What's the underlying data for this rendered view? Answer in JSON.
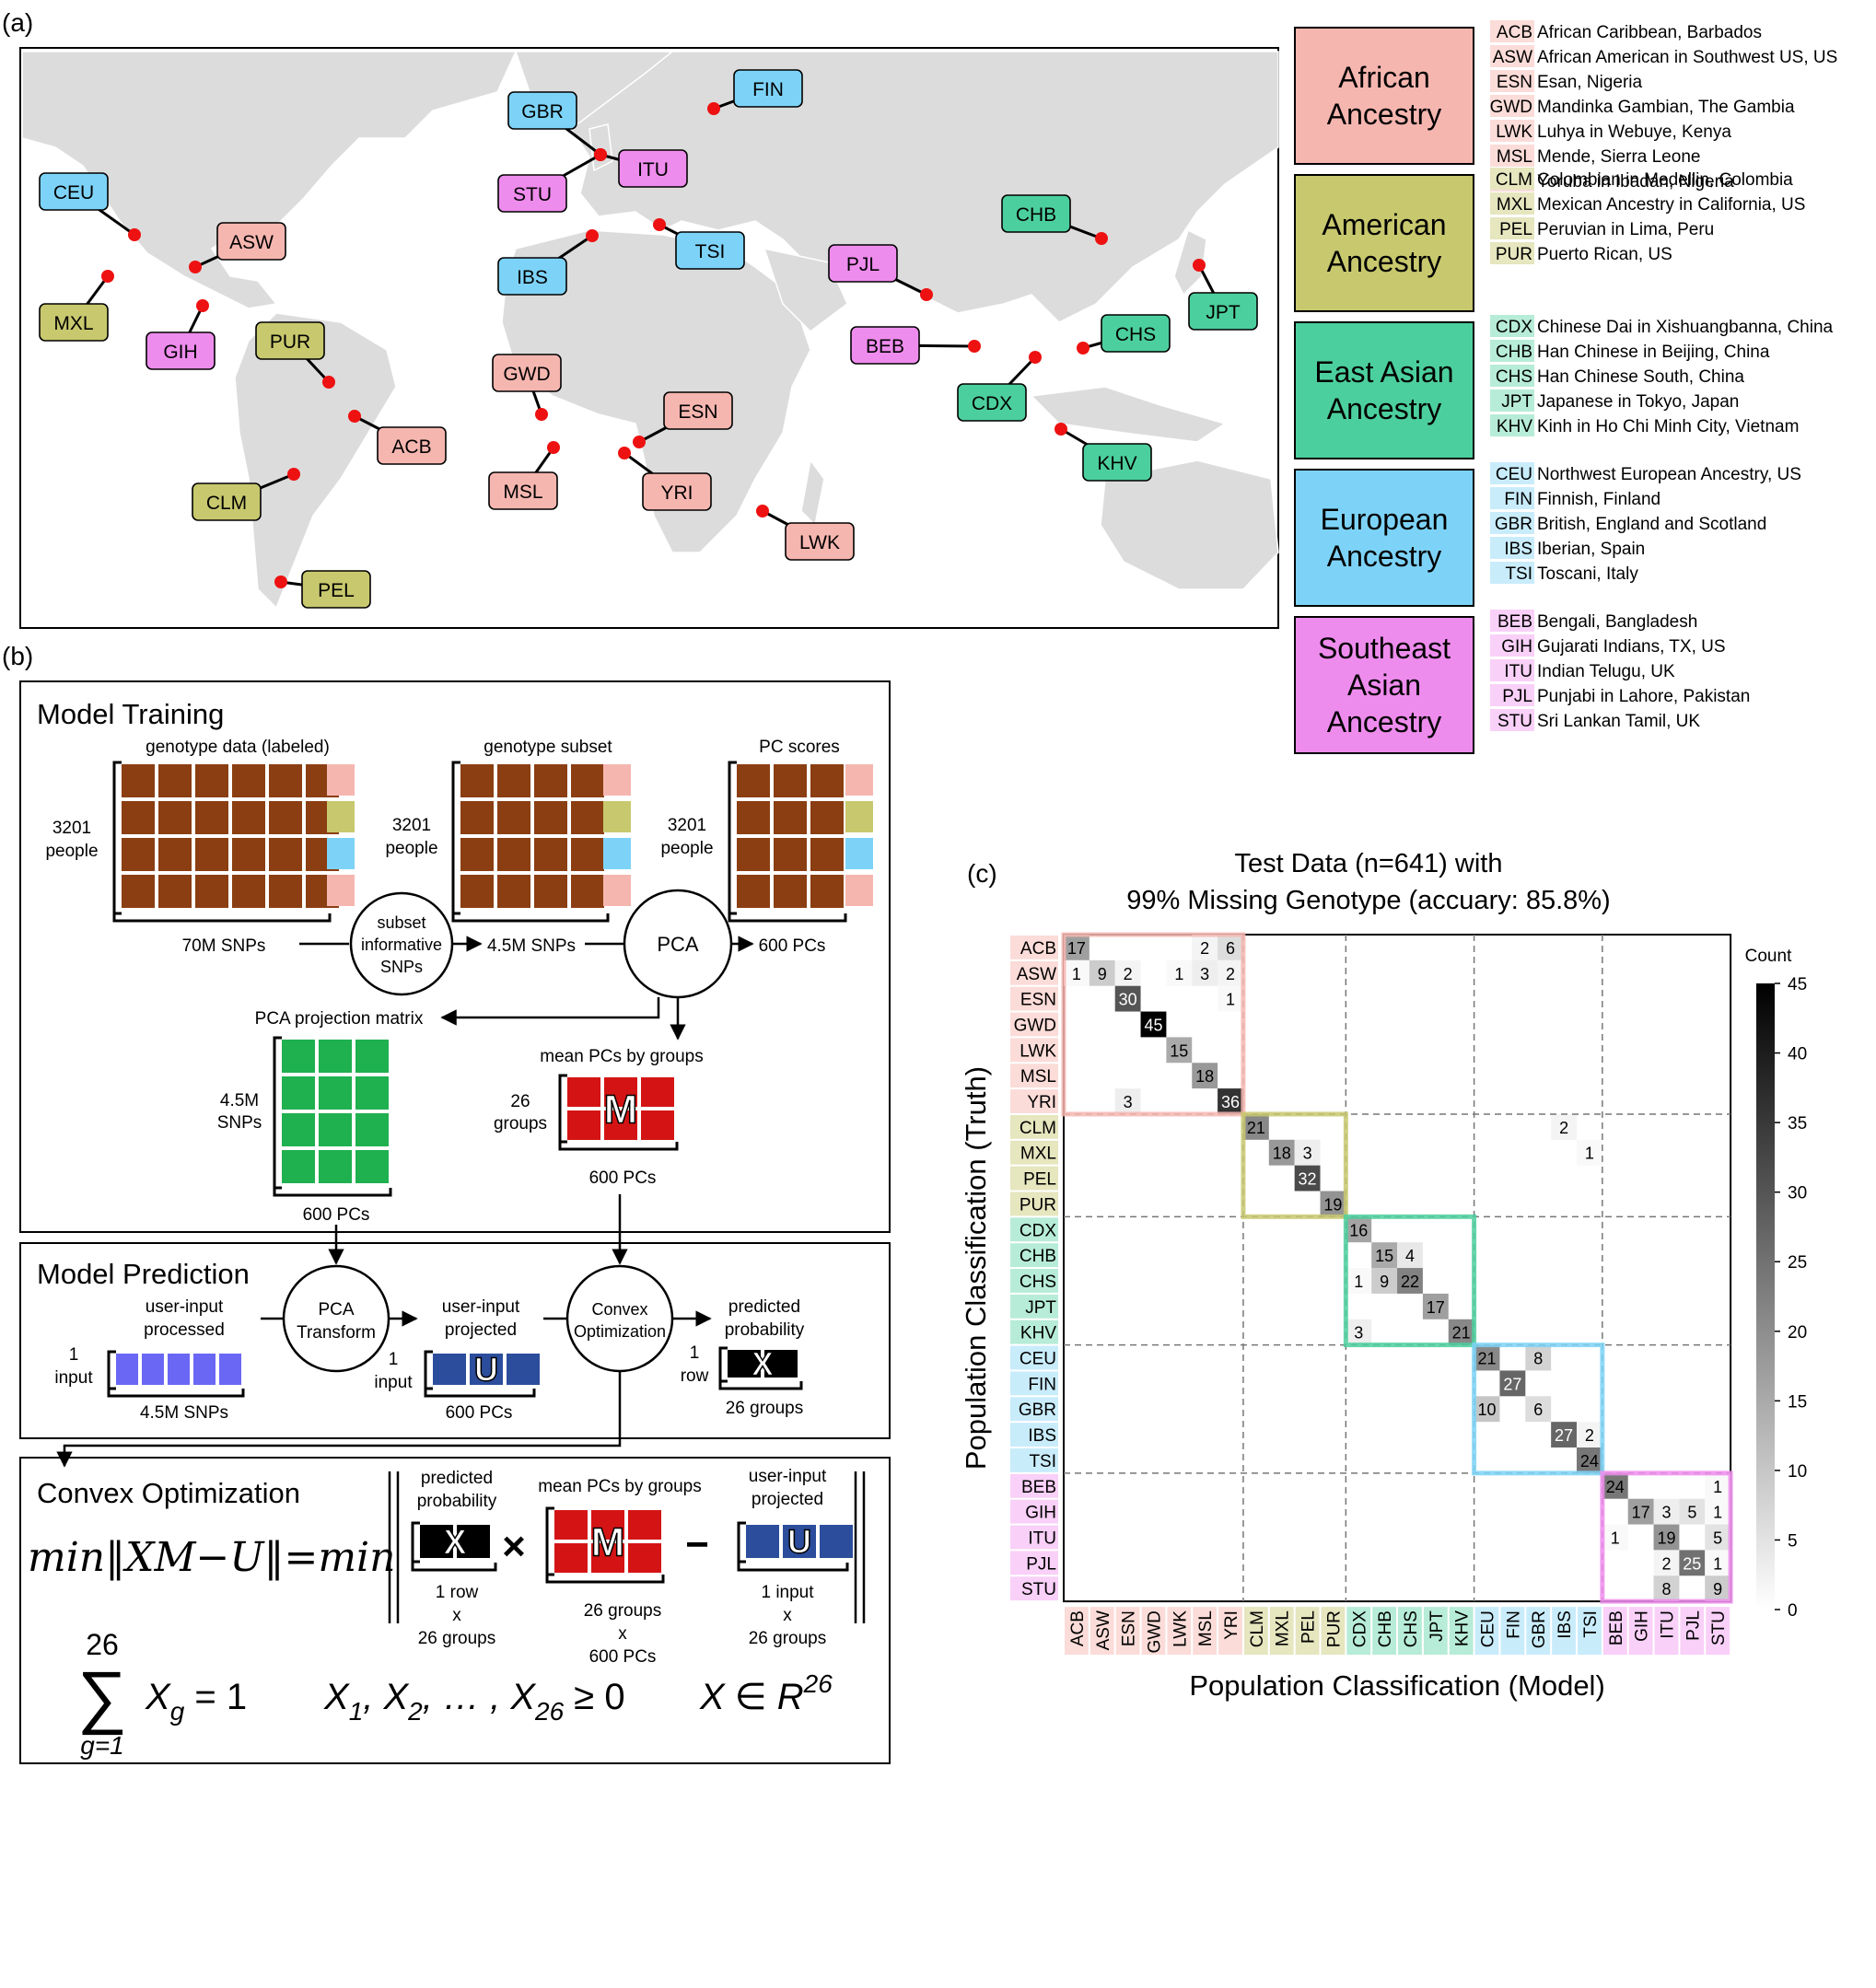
{
  "panels": {
    "a": "(a)",
    "b": "(b)",
    "c": "(c)"
  },
  "map": {
    "pins": [
      {
        "code": "CEU",
        "region": "EUR"
      },
      {
        "code": "ASW",
        "region": "AFR"
      },
      {
        "code": "MXL",
        "region": "AMR"
      },
      {
        "code": "GIH",
        "region": "SAS"
      },
      {
        "code": "PUR",
        "region": "AMR"
      },
      {
        "code": "ACB",
        "region": "AFR"
      },
      {
        "code": "CLM",
        "region": "AMR"
      },
      {
        "code": "PEL",
        "region": "AMR"
      },
      {
        "code": "GBR",
        "region": "EUR"
      },
      {
        "code": "FIN",
        "region": "EUR"
      },
      {
        "code": "STU",
        "region": "SAS"
      },
      {
        "code": "ITU",
        "region": "SAS"
      },
      {
        "code": "IBS",
        "region": "EUR"
      },
      {
        "code": "TSI",
        "region": "EUR"
      },
      {
        "code": "GWD",
        "region": "AFR"
      },
      {
        "code": "MSL",
        "region": "AFR"
      },
      {
        "code": "ESN",
        "region": "AFR"
      },
      {
        "code": "YRI",
        "region": "AFR"
      },
      {
        "code": "LWK",
        "region": "AFR"
      },
      {
        "code": "PJL",
        "region": "SAS"
      },
      {
        "code": "BEB",
        "region": "SAS"
      },
      {
        "code": "CHB",
        "region": "EAS"
      },
      {
        "code": "JPT",
        "region": "EAS"
      },
      {
        "code": "CHS",
        "region": "EAS"
      },
      {
        "code": "CDX",
        "region": "EAS"
      },
      {
        "code": "KHV",
        "region": "EAS"
      }
    ]
  },
  "colors": {
    "AFR": "#f6b6b0",
    "AMR": "#c8c86e",
    "EAS": "#4ccf9e",
    "EUR": "#7dd3f7",
    "SAS": "#ee8ced",
    "AFR_light": "#fbdcd8",
    "AMR_light": "#e6e6bf",
    "EAS_light": "#b7ecd8",
    "EUR_light": "#c9ecfb",
    "SAS_light": "#f9d0f8",
    "geno": "#8b3e12",
    "proj": "#1fb04f",
    "mean": "#d41414",
    "user": "#6b67f5",
    "userproj": "#2b4d9c",
    "red_dot": "#ee1111"
  },
  "legend": [
    {
      "region": "AFR",
      "title": [
        "African",
        "Ancestry"
      ],
      "items": [
        {
          "code": "ACB",
          "label": "African Caribbean, Barbados"
        },
        {
          "code": "ASW",
          "label": "African American in Southwest US, US"
        },
        {
          "code": "ESN",
          "label": "Esan, Nigeria"
        },
        {
          "code": "GWD",
          "label": "Mandinka Gambian, The Gambia"
        },
        {
          "code": "LWK",
          "label": "Luhya in Webuye, Kenya"
        },
        {
          "code": "MSL",
          "label": "Mende, Sierra Leone"
        },
        {
          "code": "YRI",
          "label": "Yoruba in Ibadan, Nigeria"
        }
      ]
    },
    {
      "region": "AMR",
      "title": [
        "American",
        "Ancestry"
      ],
      "items": [
        {
          "code": "CLM",
          "label": "Colombian in Medellin, Colombia"
        },
        {
          "code": "MXL",
          "label": "Mexican Ancestry in California, US"
        },
        {
          "code": "PEL",
          "label": "Peruvian in Lima, Peru"
        },
        {
          "code": "PUR",
          "label": "Puerto Rican, US"
        }
      ]
    },
    {
      "region": "EAS",
      "title": [
        "East Asian",
        "Ancestry"
      ],
      "items": [
        {
          "code": "CDX",
          "label": "Chinese Dai in Xishuangbanna, China"
        },
        {
          "code": "CHB",
          "label": "Han Chinese in Beijing, China"
        },
        {
          "code": "CHS",
          "label": "Han Chinese South, China"
        },
        {
          "code": "JPT",
          "label": "Japanese in Tokyo, Japan"
        },
        {
          "code": "KHV",
          "label": "Kinh in Ho Chi Minh City, Vietnam"
        }
      ]
    },
    {
      "region": "EUR",
      "title": [
        "European",
        "Ancestry"
      ],
      "items": [
        {
          "code": "CEU",
          "label": "Northwest European Ancestry, US"
        },
        {
          "code": "FIN",
          "label": "Finnish, Finland"
        },
        {
          "code": "GBR",
          "label": "British, England and Scotland"
        },
        {
          "code": "IBS",
          "label": "Iberian, Spain"
        },
        {
          "code": "TSI",
          "label": "Toscani, Italy"
        }
      ]
    },
    {
      "region": "SAS",
      "title": [
        "Southeast",
        "Asian",
        "Ancestry"
      ],
      "items": [
        {
          "code": "BEB",
          "label": "Bengali, Bangladesh"
        },
        {
          "code": "GIH",
          "label": "Gujarati Indians, TX, US"
        },
        {
          "code": "ITU",
          "label": "Indian Telugu, UK"
        },
        {
          "code": "PJL",
          "label": "Punjabi in Lahore, Pakistan"
        },
        {
          "code": "STU",
          "label": "Sri Lankan Tamil, UK"
        }
      ]
    }
  ],
  "training": {
    "title": "Model Training",
    "genotype_label": "genotype data (labeled)",
    "subset_label": "genotype subset",
    "pcscores_label": "PC scores",
    "people": [
      "3201",
      "people"
    ],
    "snps70": "70M SNPs",
    "subset_circle": [
      "subset",
      "informative",
      "SNPs"
    ],
    "snps45": "4.5M SNPs",
    "pca": "PCA",
    "pcs600": "600 PCs",
    "proj_label": "PCA projection matrix",
    "mean_label": "mean PCs by groups",
    "snps45_side": [
      "4.5M",
      "SNPs"
    ],
    "groups26": [
      "26",
      "groups"
    ],
    "proj_pcs": "600 PCs",
    "mean_pcs": "600 PCs",
    "M": "M"
  },
  "prediction": {
    "title": "Model Prediction",
    "user_label": [
      "user-input",
      "processed"
    ],
    "one_input": [
      "1",
      "input"
    ],
    "snps": "4.5M SNPs",
    "pca_transform": [
      "PCA",
      "Transform"
    ],
    "proj_label": [
      "user-input",
      "projected"
    ],
    "pcs": "600 PCs",
    "U": "U",
    "convex": [
      "Convex",
      "Optimization"
    ],
    "pred_label": [
      "predicted",
      "probability"
    ],
    "one_row": [
      "1",
      "row"
    ],
    "groups": "26 groups",
    "X": "X"
  },
  "convex": {
    "title": "Convex Optimization",
    "pred_label": [
      "predicted",
      "probability"
    ],
    "mean_label": "mean PCs by groups",
    "proj_label": [
      "user-input",
      "projected"
    ],
    "x_dims": [
      "1 row",
      "x",
      "26 groups"
    ],
    "m_dims": [
      "26 groups",
      "x",
      "600 PCs"
    ],
    "u_dims": [
      "1 input",
      "x",
      "26 groups"
    ]
  },
  "chart_data": {
    "type": "heatmap",
    "title": [
      "Test Data (n=641) with",
      "99% Missing Genotype (accuary: 85.8%)"
    ],
    "xlabel": "Population Classification (Model)",
    "ylabel": "Population Classification (Truth)",
    "colorbar_label": "Count",
    "colorbar_ticks": [
      0,
      5,
      10,
      15,
      20,
      25,
      30,
      35,
      40,
      45
    ],
    "vmin": 0,
    "vmax": 45,
    "labels": [
      "ACB",
      "ASW",
      "ESN",
      "GWD",
      "LWK",
      "MSL",
      "YRI",
      "CLM",
      "MXL",
      "PEL",
      "PUR",
      "CDX",
      "CHB",
      "CHS",
      "JPT",
      "KHV",
      "CEU",
      "FIN",
      "GBR",
      "IBS",
      "TSI",
      "BEB",
      "GIH",
      "ITU",
      "PJL",
      "STU"
    ],
    "groups": [
      {
        "region": "AFR",
        "start": 0,
        "end": 7
      },
      {
        "region": "AMR",
        "start": 7,
        "end": 11
      },
      {
        "region": "EAS",
        "start": 11,
        "end": 16
      },
      {
        "region": "EUR",
        "start": 16,
        "end": 21
      },
      {
        "region": "SAS",
        "start": 21,
        "end": 26
      }
    ],
    "cells": [
      [
        0,
        0,
        17
      ],
      [
        0,
        5,
        2
      ],
      [
        0,
        6,
        6
      ],
      [
        1,
        0,
        1
      ],
      [
        1,
        1,
        9
      ],
      [
        1,
        2,
        2
      ],
      [
        1,
        4,
        1
      ],
      [
        1,
        5,
        3
      ],
      [
        1,
        6,
        2
      ],
      [
        2,
        2,
        30
      ],
      [
        2,
        6,
        1
      ],
      [
        3,
        3,
        45
      ],
      [
        4,
        4,
        15
      ],
      [
        5,
        5,
        18
      ],
      [
        6,
        2,
        3
      ],
      [
        6,
        6,
        36
      ],
      [
        7,
        7,
        21
      ],
      [
        7,
        19,
        2
      ],
      [
        8,
        8,
        18
      ],
      [
        8,
        9,
        3
      ],
      [
        8,
        20,
        1
      ],
      [
        9,
        9,
        32
      ],
      [
        10,
        10,
        19
      ],
      [
        11,
        11,
        16
      ],
      [
        12,
        12,
        15
      ],
      [
        12,
        13,
        4
      ],
      [
        13,
        11,
        1
      ],
      [
        13,
        12,
        9
      ],
      [
        13,
        13,
        22
      ],
      [
        14,
        14,
        17
      ],
      [
        15,
        11,
        3
      ],
      [
        15,
        15,
        21
      ],
      [
        16,
        16,
        21
      ],
      [
        16,
        18,
        8
      ],
      [
        17,
        17,
        27
      ],
      [
        18,
        16,
        10
      ],
      [
        18,
        18,
        6
      ],
      [
        19,
        19,
        27
      ],
      [
        19,
        20,
        2
      ],
      [
        20,
        20,
        24
      ],
      [
        21,
        21,
        24
      ],
      [
        21,
        25,
        1
      ],
      [
        22,
        22,
        17
      ],
      [
        22,
        23,
        3
      ],
      [
        22,
        24,
        5
      ],
      [
        22,
        25,
        1
      ],
      [
        23,
        21,
        1
      ],
      [
        23,
        23,
        19
      ],
      [
        23,
        25,
        5
      ],
      [
        24,
        23,
        2
      ],
      [
        24,
        24,
        25
      ],
      [
        24,
        25,
        1
      ],
      [
        25,
        23,
        8
      ],
      [
        25,
        25,
        9
      ]
    ]
  }
}
